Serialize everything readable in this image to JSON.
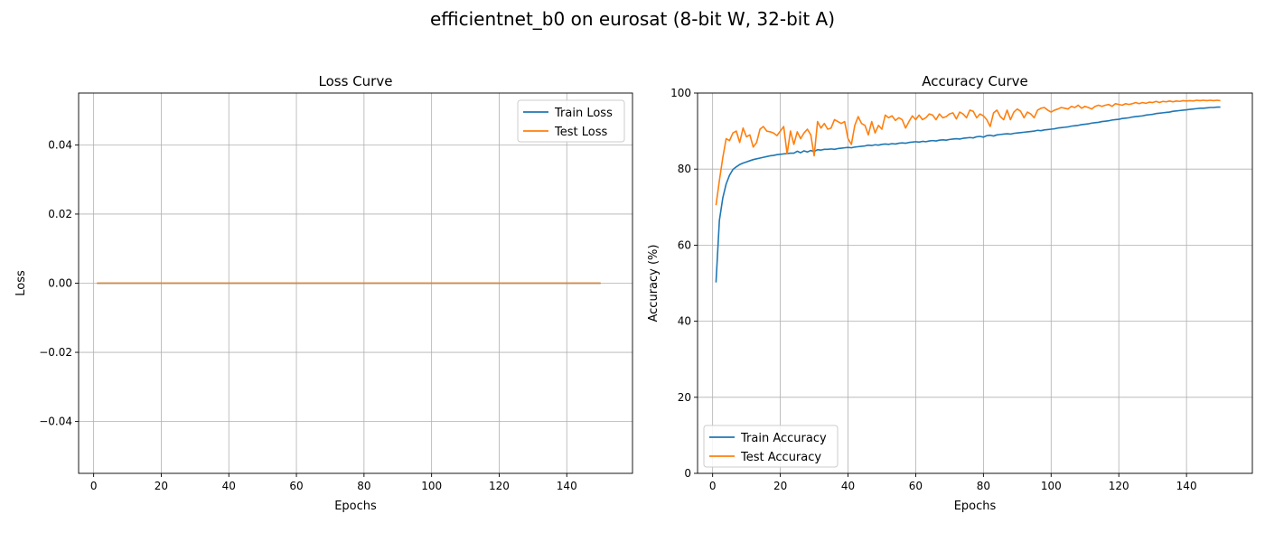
{
  "figure": {
    "suptitle": "efficientnet_b0 on eurosat (8-bit W, 32-bit A)"
  },
  "colors": {
    "train": "#1f77b4",
    "test": "#ff7f0e",
    "grid": "#b0b0b0",
    "axis": "#000000",
    "legend_border": "#cccccc"
  },
  "chart_data": [
    {
      "type": "line",
      "title": "Loss Curve",
      "xlabel": "Epochs",
      "ylabel": "Loss",
      "xlim": [
        -4.45,
        159.45
      ],
      "ylim": [
        -0.055,
        0.055
      ],
      "xticks": [
        0,
        20,
        40,
        60,
        80,
        100,
        120,
        140
      ],
      "xtick_labels": [
        "0",
        "20",
        "40",
        "60",
        "80",
        "100",
        "120",
        "140"
      ],
      "yticks": [
        -0.04,
        -0.02,
        0.0,
        0.02,
        0.04
      ],
      "ytick_labels": [
        "−0.04",
        "−0.02",
        "0.00",
        "0.02",
        "0.04"
      ],
      "grid": true,
      "legend_position": "upper right",
      "x": {
        "start": 1,
        "end": 150,
        "step": 1
      },
      "series": [
        {
          "name": "Train Loss",
          "color_key": "train",
          "constant": 0.0
        },
        {
          "name": "Test Loss",
          "color_key": "test",
          "constant": 0.0
        }
      ]
    },
    {
      "type": "line",
      "title": "Accuracy Curve",
      "xlabel": "Epochs",
      "ylabel": "Accuracy (%)",
      "xlim": [
        -4.45,
        159.45
      ],
      "ylim": [
        0,
        100
      ],
      "xticks": [
        0,
        20,
        40,
        60,
        80,
        100,
        120,
        140
      ],
      "xtick_labels": [
        "0",
        "20",
        "40",
        "60",
        "80",
        "100",
        "120",
        "140"
      ],
      "yticks": [
        0,
        20,
        40,
        60,
        80,
        100
      ],
      "ytick_labels": [
        "0",
        "20",
        "40",
        "60",
        "80",
        "100"
      ],
      "grid": true,
      "legend_position": "lower left",
      "x": {
        "start": 1,
        "end": 150,
        "step": 1
      },
      "series": [
        {
          "name": "Train Accuracy",
          "color_key": "train",
          "values": [
            50.2,
            66.5,
            72.4,
            76.1,
            78.4,
            79.9,
            80.6,
            81.2,
            81.6,
            81.9,
            82.2,
            82.5,
            82.7,
            82.9,
            83.1,
            83.3,
            83.5,
            83.6,
            83.8,
            83.9,
            84.0,
            84.1,
            84.2,
            84.2,
            84.7,
            84.3,
            84.8,
            84.5,
            84.9,
            84.6,
            85.1,
            85.0,
            85.2,
            85.2,
            85.3,
            85.2,
            85.4,
            85.5,
            85.6,
            85.7,
            85.6,
            85.8,
            85.9,
            86.0,
            86.1,
            86.3,
            86.2,
            86.4,
            86.3,
            86.5,
            86.6,
            86.5,
            86.7,
            86.6,
            86.8,
            86.9,
            86.8,
            87.0,
            87.1,
            87.2,
            87.1,
            87.3,
            87.2,
            87.4,
            87.5,
            87.4,
            87.6,
            87.7,
            87.6,
            87.8,
            87.9,
            88.0,
            87.9,
            88.1,
            88.2,
            88.3,
            88.2,
            88.5,
            88.6,
            88.4,
            88.8,
            88.9,
            88.7,
            89.0,
            89.1,
            89.2,
            89.3,
            89.2,
            89.4,
            89.5,
            89.6,
            89.7,
            89.8,
            89.9,
            90.0,
            90.2,
            90.1,
            90.3,
            90.4,
            90.5,
            90.6,
            90.8,
            90.9,
            91.0,
            91.1,
            91.3,
            91.4,
            91.5,
            91.7,
            91.8,
            91.9,
            92.1,
            92.2,
            92.3,
            92.5,
            92.6,
            92.7,
            92.9,
            93.0,
            93.1,
            93.3,
            93.4,
            93.5,
            93.7,
            93.8,
            93.9,
            94.0,
            94.2,
            94.3,
            94.4,
            94.6,
            94.7,
            94.8,
            94.9,
            95.0,
            95.2,
            95.3,
            95.4,
            95.5,
            95.6,
            95.7,
            95.8,
            95.9,
            96.0,
            96.0,
            96.1,
            96.2,
            96.2,
            96.3,
            96.3
          ]
        },
        {
          "name": "Test Accuracy",
          "color_key": "test",
          "values": [
            70.5,
            77.0,
            83.0,
            88.0,
            87.5,
            89.5,
            90.0,
            87.0,
            90.8,
            88.5,
            89.0,
            85.8,
            87.0,
            90.5,
            91.2,
            90.0,
            89.8,
            89.5,
            88.8,
            90.0,
            91.2,
            84.0,
            90.0,
            86.5,
            89.8,
            88.0,
            89.5,
            90.5,
            89.0,
            83.5,
            92.5,
            90.8,
            92.0,
            90.5,
            90.8,
            93.0,
            92.5,
            92.0,
            92.5,
            88.0,
            86.5,
            91.5,
            93.8,
            92.0,
            91.5,
            89.0,
            92.5,
            89.5,
            91.5,
            90.5,
            94.2,
            93.5,
            94.0,
            92.8,
            93.5,
            93.0,
            90.8,
            92.5,
            94.0,
            93.0,
            94.2,
            93.0,
            93.5,
            94.5,
            94.2,
            93.0,
            94.5,
            93.5,
            93.8,
            94.5,
            94.8,
            93.2,
            95.0,
            94.5,
            93.5,
            95.5,
            95.2,
            93.5,
            94.5,
            94.0,
            93.0,
            91.2,
            94.8,
            95.5,
            93.8,
            93.0,
            95.5,
            93.0,
            95.0,
            95.8,
            95.2,
            93.5,
            95.0,
            94.5,
            93.5,
            95.5,
            96.0,
            96.2,
            95.5,
            95.0,
            95.5,
            95.8,
            96.2,
            96.0,
            95.8,
            96.5,
            96.2,
            96.8,
            96.0,
            96.5,
            96.2,
            95.8,
            96.5,
            96.8,
            96.5,
            96.8,
            97.0,
            96.5,
            97.2,
            97.0,
            96.8,
            97.2,
            97.0,
            97.2,
            97.5,
            97.2,
            97.5,
            97.3,
            97.6,
            97.5,
            97.8,
            97.5,
            97.8,
            97.7,
            97.9,
            97.7,
            97.9,
            97.8,
            98.0,
            97.9,
            98.0,
            97.9,
            98.1,
            98.0,
            98.1,
            98.0,
            98.1,
            98.0,
            98.1,
            98.0
          ]
        }
      ]
    }
  ]
}
